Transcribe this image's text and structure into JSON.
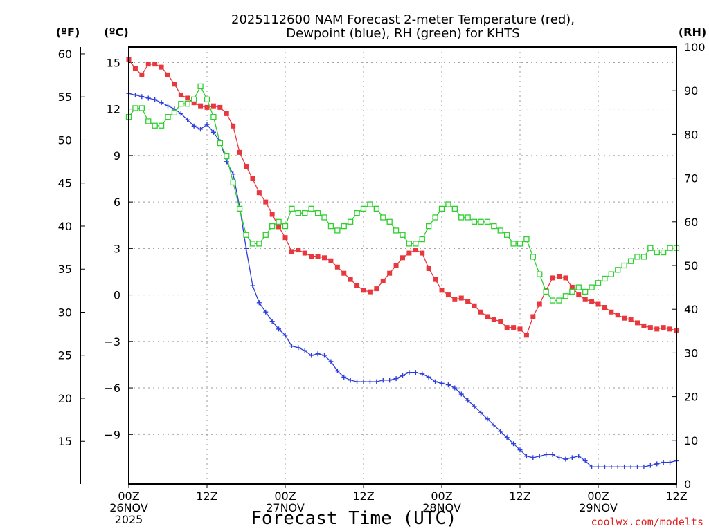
{
  "chart_data": {
    "type": "line",
    "title_line1": "2025112600 NAM Forecast 2-meter Temperature (red),",
    "title_line2": "Dewpoint (blue), RH (green) for KHTS",
    "xlabel": "Forecast Time (UTC)",
    "credit": "coolwx.com/modelts",
    "units": {
      "fahrenheit": "(ºF)",
      "celsius": "(ºC)",
      "rh": "(RH)"
    },
    "x_range_hours": [
      0,
      84
    ],
    "x_ticks": [
      {
        "hour": 0,
        "lines": [
          "00Z",
          "26NOV",
          "2025"
        ]
      },
      {
        "hour": 12,
        "lines": [
          "12Z"
        ]
      },
      {
        "hour": 24,
        "lines": [
          "00Z",
          "27NOV"
        ]
      },
      {
        "hour": 36,
        "lines": [
          "12Z"
        ]
      },
      {
        "hour": 48,
        "lines": [
          "00Z",
          "28NOV"
        ]
      },
      {
        "hour": 60,
        "lines": [
          "12Z"
        ]
      },
      {
        "hour": 72,
        "lines": [
          "00Z",
          "29NOV"
        ]
      },
      {
        "hour": 84,
        "lines": [
          "12Z"
        ]
      }
    ],
    "celsius_range": [
      -12.2,
      16.0
    ],
    "celsius_ticks": [
      "15",
      "12",
      "9",
      "6",
      "3",
      "0",
      "−3",
      "−6",
      "−9"
    ],
    "celsius_tick_values": [
      15,
      12,
      9,
      6,
      3,
      0,
      -3,
      -6,
      -9
    ],
    "fahrenheit_ticks": [
      "60",
      "55",
      "50",
      "45",
      "40",
      "35",
      "30",
      "25",
      "20",
      "15"
    ],
    "fahrenheit_tick_values": [
      60,
      55,
      50,
      45,
      40,
      35,
      30,
      25,
      20,
      15
    ],
    "rh_range": [
      0,
      100
    ],
    "rh_ticks": [
      "100",
      "90",
      "80",
      "70",
      "60",
      "50",
      "40",
      "30",
      "20",
      "10",
      "0"
    ],
    "rh_tick_values": [
      100,
      90,
      80,
      70,
      60,
      50,
      40,
      30,
      20,
      10,
      0
    ],
    "series": [
      {
        "name": "2-meter Temperature",
        "axis": "celsius",
        "color": "#e8383d",
        "marker": "filled-square",
        "x": [
          0,
          1,
          2,
          3,
          4,
          5,
          6,
          7,
          8,
          9,
          10,
          11,
          12,
          13,
          14,
          15,
          16,
          17,
          18,
          19,
          20,
          21,
          22,
          23,
          24,
          25,
          26,
          27,
          28,
          29,
          30,
          31,
          32,
          33,
          34,
          35,
          36,
          37,
          38,
          39,
          40,
          41,
          42,
          43,
          44,
          45,
          46,
          47,
          48,
          49,
          50,
          51,
          52,
          53,
          54,
          55,
          56,
          57,
          58,
          59,
          60,
          61,
          62,
          63,
          64,
          65,
          66,
          67,
          68,
          69,
          70,
          71,
          72,
          73,
          74,
          75,
          76,
          77,
          78,
          79,
          80,
          81,
          82,
          83,
          84
        ],
        "values": [
          15.2,
          14.6,
          14.2,
          14.9,
          14.9,
          14.7,
          14.2,
          13.6,
          12.9,
          12.7,
          12.4,
          12.2,
          12.1,
          12.2,
          12.1,
          11.7,
          10.9,
          9.2,
          8.3,
          7.5,
          6.6,
          6.0,
          5.2,
          4.4,
          3.7,
          2.8,
          2.9,
          2.7,
          2.5,
          2.5,
          2.4,
          2.2,
          1.8,
          1.4,
          1.0,
          0.6,
          0.3,
          0.2,
          0.4,
          0.9,
          1.4,
          1.9,
          2.4,
          2.7,
          2.9,
          2.7,
          1.7,
          1.0,
          0.3,
          0.0,
          -0.3,
          -0.2,
          -0.4,
          -0.7,
          -1.1,
          -1.4,
          -1.6,
          -1.7,
          -2.1,
          -2.1,
          -2.2,
          -2.6,
          -1.4,
          -0.6,
          0.3,
          1.1,
          1.2,
          1.1,
          0.5,
          0.0,
          -0.3,
          -0.4,
          -0.6,
          -0.8,
          -1.1,
          -1.3,
          -1.5,
          -1.6,
          -1.8,
          -2.0,
          -2.1,
          -2.2,
          -2.1,
          -2.2,
          -2.3
        ]
      },
      {
        "name": "Dewpoint",
        "axis": "celsius",
        "color": "#2e3ed8",
        "marker": "plus",
        "x": [
          0,
          1,
          2,
          3,
          4,
          5,
          6,
          7,
          8,
          9,
          10,
          11,
          12,
          13,
          14,
          15,
          16,
          17,
          18,
          19,
          20,
          21,
          22,
          23,
          24,
          25,
          26,
          27,
          28,
          29,
          30,
          31,
          32,
          33,
          34,
          35,
          36,
          37,
          38,
          39,
          40,
          41,
          42,
          43,
          44,
          45,
          46,
          47,
          48,
          49,
          50,
          51,
          52,
          53,
          54,
          55,
          56,
          57,
          58,
          59,
          60,
          61,
          62,
          63,
          64,
          65,
          66,
          67,
          68,
          69,
          70,
          71,
          72,
          73,
          74,
          75,
          76,
          77,
          78,
          79,
          80,
          81,
          82,
          83,
          84
        ],
        "values": [
          13.0,
          12.9,
          12.8,
          12.7,
          12.6,
          12.4,
          12.2,
          12.0,
          11.7,
          11.3,
          10.9,
          10.7,
          11.0,
          10.5,
          9.9,
          8.6,
          7.8,
          5.7,
          3.0,
          0.6,
          -0.5,
          -1.1,
          -1.7,
          -2.2,
          -2.6,
          -3.3,
          -3.4,
          -3.6,
          -3.9,
          -3.8,
          -3.9,
          -4.3,
          -4.9,
          -5.3,
          -5.5,
          -5.6,
          -5.6,
          -5.6,
          -5.6,
          -5.5,
          -5.5,
          -5.4,
          -5.2,
          -5.0,
          -5.0,
          -5.1,
          -5.3,
          -5.6,
          -5.7,
          -5.8,
          -6.0,
          -6.4,
          -6.8,
          -7.2,
          -7.6,
          -8.0,
          -8.4,
          -8.8,
          -9.2,
          -9.6,
          -10.0,
          -10.4,
          -10.5,
          -10.4,
          -10.3,
          -10.3,
          -10.5,
          -10.6,
          -10.5,
          -10.4,
          -10.7,
          -11.1,
          -11.1,
          -11.1,
          -11.1,
          -11.1,
          -11.1,
          -11.1,
          -11.1,
          -11.1,
          -11.0,
          -10.9,
          -10.8,
          -10.8,
          -10.7
        ]
      },
      {
        "name": "RH",
        "axis": "rh",
        "color": "#2ecf2e",
        "marker": "open-square",
        "x": [
          0,
          1,
          2,
          3,
          4,
          5,
          6,
          7,
          8,
          9,
          10,
          11,
          12,
          13,
          14,
          15,
          16,
          17,
          18,
          19,
          20,
          21,
          22,
          23,
          24,
          25,
          26,
          27,
          28,
          29,
          30,
          31,
          32,
          33,
          34,
          35,
          36,
          37,
          38,
          39,
          40,
          41,
          42,
          43,
          44,
          45,
          46,
          47,
          48,
          49,
          50,
          51,
          52,
          53,
          54,
          55,
          56,
          57,
          58,
          59,
          60,
          61,
          62,
          63,
          64,
          65,
          66,
          67,
          68,
          69,
          70,
          71,
          72,
          73,
          74,
          75,
          76,
          77,
          78,
          79,
          80,
          81,
          82,
          83,
          84
        ],
        "values": [
          84,
          86,
          86,
          83,
          82,
          82,
          84,
          85,
          87,
          87,
          88,
          91,
          88,
          84,
          78,
          75,
          69,
          63,
          57,
          55,
          55,
          57,
          59,
          60,
          59,
          63,
          62,
          62,
          63,
          62,
          61,
          59,
          58,
          59,
          60,
          62,
          63,
          64,
          63,
          61,
          60,
          58,
          57,
          55,
          55,
          56,
          59,
          61,
          63,
          64,
          63,
          61,
          61,
          60,
          60,
          60,
          59,
          58,
          57,
          55,
          55,
          56,
          52,
          48,
          44,
          42,
          42,
          43,
          44,
          45,
          44,
          45,
          46,
          47,
          48,
          49,
          50,
          51,
          52,
          52,
          54,
          53,
          53,
          54,
          54
        ]
      }
    ]
  }
}
